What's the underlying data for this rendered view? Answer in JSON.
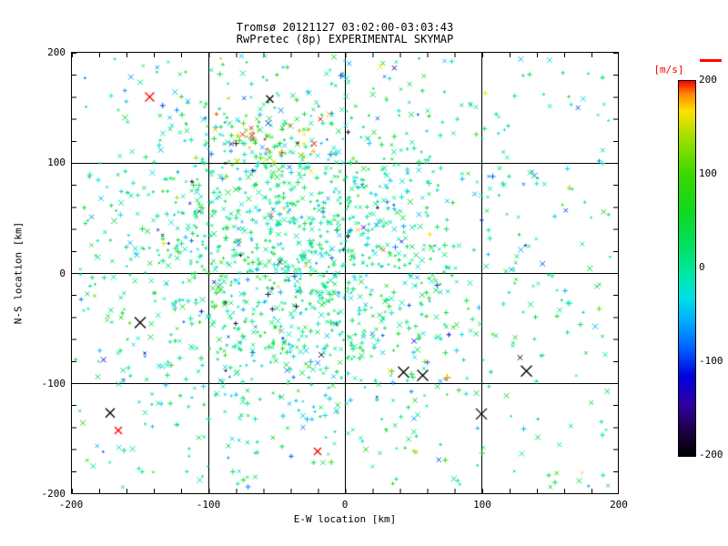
{
  "chart_data": {
    "type": "scatter",
    "title": "Tromsø 20121127 03:02:00-03:03:43",
    "subtitle": "RwPretec (8p) EXPERIMENTAL SKYMAP",
    "xlabel": "E-W location [km]",
    "ylabel": "N-S location [km]",
    "xlim": [
      -200,
      200
    ],
    "ylim": [
      -200,
      200
    ],
    "grid": true,
    "x_ticks": [
      -200,
      -100,
      0,
      100,
      200
    ],
    "y_ticks": [
      200,
      100,
      0,
      -100,
      -200
    ],
    "x_tick_labels": [
      "-200",
      "-100",
      "0",
      "100",
      "200"
    ],
    "y_tick_labels": [
      "200",
      "100",
      "0",
      "-100",
      "-200"
    ],
    "colorbar": {
      "label": "[m/s]",
      "label_color": "#ff0000",
      "min": -200,
      "max": 200,
      "tick_labels": [
        "200",
        "100",
        "0",
        "-100",
        "-200"
      ],
      "stops": [
        {
          "v": -200,
          "c": "#000000"
        },
        {
          "v": -175,
          "c": "#1a0040"
        },
        {
          "v": -145,
          "c": "#3000a0"
        },
        {
          "v": -115,
          "c": "#0000e0"
        },
        {
          "v": -85,
          "c": "#0060ff"
        },
        {
          "v": -55,
          "c": "#00b0ff"
        },
        {
          "v": -30,
          "c": "#00e0e0"
        },
        {
          "v": -5,
          "c": "#00e8a0"
        },
        {
          "v": 25,
          "c": "#00e060"
        },
        {
          "v": 60,
          "c": "#10d820"
        },
        {
          "v": 100,
          "c": "#38d800"
        },
        {
          "v": 140,
          "c": "#a0e000"
        },
        {
          "v": 168,
          "c": "#ffe000"
        },
        {
          "v": 186,
          "c": "#ff8800"
        },
        {
          "v": 200,
          "c": "#ff0000"
        }
      ]
    },
    "point_cloud": {
      "description": "~1800 meteor-radar echoes plotted as small + and x markers colored by radial velocity; dense cluster centered NW of origin, sparse background over full field, mostly near 0 m/s (green/teal) with scattered fast red and black outliers",
      "seed": 20121127,
      "marker_types": [
        "plus",
        "cross"
      ],
      "clusters": [
        {
          "count": 1300,
          "center": [
            -40,
            15
          ],
          "sigma": [
            75,
            80
          ],
          "v_mean": 5,
          "v_sigma": 35,
          "outlier_p": 0.05
        },
        {
          "count": 450,
          "uniform": true,
          "v_mean": 0,
          "v_sigma": 45,
          "outlier_p": 0.09
        },
        {
          "count": 70,
          "center": [
            -55,
            120
          ],
          "sigma": [
            20,
            14
          ],
          "v_mean": 110,
          "v_sigma": 80,
          "outlier_p": 0.15
        }
      ]
    },
    "notable_points": [
      {
        "x": -150,
        "y": -45,
        "v": -200,
        "marker": "cross",
        "size": 6
      },
      {
        "x": -172,
        "y": -127,
        "v": -200,
        "marker": "cross",
        "size": 5
      },
      {
        "x": 43,
        "y": -90,
        "v": -200,
        "marker": "cross",
        "size": 6
      },
      {
        "x": 57,
        "y": -93,
        "v": -200,
        "marker": "cross",
        "size": 6
      },
      {
        "x": 100,
        "y": -128,
        "v": -200,
        "marker": "cross",
        "size": 6
      },
      {
        "x": 133,
        "y": -89,
        "v": -200,
        "marker": "cross",
        "size": 6
      },
      {
        "x": -55,
        "y": 158,
        "v": -200,
        "marker": "cross",
        "size": 4
      },
      {
        "x": -143,
        "y": 160,
        "v": 200,
        "marker": "cross",
        "size": 5
      },
      {
        "x": -20,
        "y": -162,
        "v": 200,
        "marker": "cross",
        "size": 4
      },
      {
        "x": -166,
        "y": -143,
        "v": 200,
        "marker": "cross",
        "size": 4
      },
      {
        "x": 75,
        "y": -95,
        "v": 180,
        "marker": "plus",
        "size": 4
      }
    ]
  }
}
